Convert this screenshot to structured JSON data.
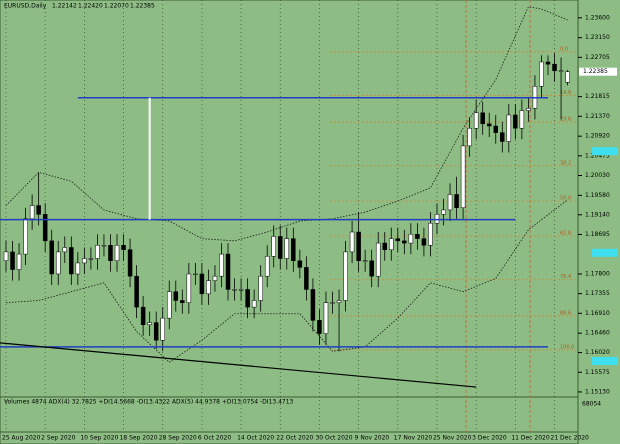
{
  "chart_data": {
    "type": "candlestick",
    "title": "EURUSD,Daily",
    "ohlc_header": [
      "1.22142",
      "1.22420",
      "1.22070",
      "1.22385"
    ],
    "price_label": "1.22385",
    "open": [
      1.181,
      1.183,
      1.179,
      1.1825,
      1.1905,
      1.1935,
      1.1915,
      1.1855,
      1.178,
      1.183,
      1.184,
      1.178,
      1.1805,
      1.1815,
      1.1815,
      1.1845,
      1.1845,
      1.181,
      1.1845,
      1.1835,
      1.1775,
      1.1705,
      1.1665,
      1.167,
      1.163,
      1.168,
      1.174,
      1.172,
      1.1715,
      1.178,
      1.178,
      1.1735,
      1.1765,
      1.1775,
      1.1825,
      1.1745,
      1.1745,
      1.1745,
      1.1705,
      1.172,
      1.1775,
      1.182,
      1.1865,
      1.1815,
      1.186,
      1.181,
      1.1795,
      1.1745,
      1.1675,
      1.1645,
      1.1715,
      1.1715,
      1.172,
      1.183,
      1.1875,
      1.181,
      1.181,
      1.1775,
      1.185,
      1.1835,
      1.186,
      1.1855,
      1.185,
      1.187,
      1.186,
      1.1845,
      1.1895,
      1.1915,
      1.1925,
      1.196,
      1.193,
      1.207,
      1.211,
      1.2145,
      1.212,
      1.2115,
      1.21,
      1.208,
      1.214,
      1.211,
      1.215,
      1.2155,
      1.2205,
      1.226,
      1.2255,
      1.224,
      1.2214
    ],
    "high": [
      1.1855,
      1.1855,
      1.185,
      1.193,
      1.196,
      1.201,
      1.194,
      1.188,
      1.1855,
      1.1865,
      1.1865,
      1.183,
      1.184,
      1.184,
      1.187,
      1.187,
      1.187,
      1.187,
      1.187,
      1.186,
      1.18,
      1.173,
      1.1695,
      1.1695,
      1.1705,
      1.1765,
      1.1765,
      1.1745,
      1.1805,
      1.1805,
      1.1805,
      1.179,
      1.18,
      1.185,
      1.185,
      1.177,
      1.177,
      1.177,
      1.1745,
      1.18,
      1.1845,
      1.189,
      1.189,
      1.1885,
      1.1885,
      1.1835,
      1.182,
      1.177,
      1.17,
      1.174,
      1.174,
      1.1745,
      1.1855,
      1.19,
      1.192,
      1.1835,
      1.1835,
      1.1875,
      1.1875,
      1.1885,
      1.1885,
      1.188,
      1.1895,
      1.1895,
      1.1885,
      1.192,
      1.194,
      1.195,
      1.1985,
      1.2,
      1.2095,
      1.2135,
      1.2175,
      1.217,
      1.2145,
      1.214,
      1.2125,
      1.2165,
      1.2165,
      1.2175,
      1.218,
      1.223,
      1.2275,
      1.2275,
      1.228,
      1.227,
      1.2242
    ],
    "low": [
      1.1785,
      1.1765,
      1.1765,
      1.18,
      1.188,
      1.189,
      1.183,
      1.1755,
      1.1755,
      1.1805,
      1.1755,
      1.1755,
      1.178,
      1.179,
      1.179,
      1.182,
      1.1785,
      1.1785,
      1.181,
      1.175,
      1.168,
      1.164,
      1.164,
      1.161,
      1.1605,
      1.1655,
      1.1695,
      1.169,
      1.169,
      1.1755,
      1.171,
      1.171,
      1.174,
      1.175,
      1.172,
      1.172,
      1.172,
      1.168,
      1.168,
      1.1695,
      1.175,
      1.1795,
      1.179,
      1.179,
      1.1785,
      1.177,
      1.172,
      1.165,
      1.162,
      1.162,
      1.169,
      1.1605,
      1.1695,
      1.1805,
      1.1785,
      1.1785,
      1.175,
      1.175,
      1.181,
      1.181,
      1.183,
      1.1825,
      1.1825,
      1.1835,
      1.182,
      1.182,
      1.187,
      1.189,
      1.19,
      1.1905,
      1.1905,
      1.2045,
      1.2085,
      1.2095,
      1.209,
      1.2075,
      1.2055,
      1.2055,
      1.2085,
      1.2085,
      1.2125,
      1.213,
      1.218,
      1.223,
      1.2215,
      1.213,
      1.2207
    ],
    "close": [
      1.183,
      1.179,
      1.1825,
      1.1905,
      1.1935,
      1.1915,
      1.1855,
      1.178,
      1.183,
      1.184,
      1.178,
      1.1805,
      1.1815,
      1.1815,
      1.1845,
      1.1845,
      1.181,
      1.1845,
      1.1835,
      1.1775,
      1.1705,
      1.1665,
      1.167,
      1.163,
      1.168,
      1.174,
      1.172,
      1.1715,
      1.178,
      1.178,
      1.1735,
      1.1765,
      1.1775,
      1.1825,
      1.1745,
      1.1745,
      1.1745,
      1.1705,
      1.172,
      1.1775,
      1.182,
      1.1865,
      1.1815,
      1.186,
      1.181,
      1.1795,
      1.1745,
      1.1675,
      1.1645,
      1.1715,
      1.1715,
      1.172,
      1.183,
      1.1875,
      1.181,
      1.181,
      1.1775,
      1.185,
      1.1835,
      1.186,
      1.1855,
      1.185,
      1.187,
      1.186,
      1.1845,
      1.1895,
      1.1915,
      1.1925,
      1.196,
      1.193,
      1.207,
      1.211,
      1.2145,
      1.212,
      1.2115,
      1.21,
      1.208,
      1.214,
      1.211,
      1.215,
      1.2155,
      1.2205,
      1.226,
      1.2255,
      1.224,
      1.224,
      1.2238
    ],
    "bands": [
      {
        "x": [
          0,
          5,
          10,
          15,
          20,
          25,
          30,
          35,
          40,
          45,
          50,
          55,
          60,
          65,
          70,
          75,
          80,
          82,
          86
        ],
        "values": [
          1.1935,
          1.201,
          1.199,
          1.1925,
          1.1905,
          1.19,
          1.186,
          1.1855,
          1.1875,
          1.19,
          1.1905,
          1.192,
          1.1945,
          1.1975,
          1.211,
          1.222,
          1.2385,
          1.238,
          1.2355
        ]
      },
      {
        "x": [
          0,
          5,
          10,
          15,
          20,
          25,
          30,
          35,
          40,
          45,
          50,
          55,
          60,
          65,
          70,
          75,
          80,
          86
        ],
        "values": [
          1.1715,
          1.172,
          1.174,
          1.176,
          1.165,
          1.158,
          1.163,
          1.169,
          1.169,
          1.169,
          1.1605,
          1.1615,
          1.168,
          1.176,
          1.174,
          1.177,
          1.188,
          1.1948
        ]
      }
    ],
    "levels": [
      {
        "from": 11,
        "to": 83,
        "price": 1.2179
      },
      {
        "from": -1,
        "to": 78,
        "price": 1.1903
      },
      {
        "from": -1,
        "to": 83,
        "price": 1.1615
      }
    ],
    "marker_line": {
      "x": 22,
      "from": 1.2179,
      "to": 1.1903
    },
    "trendline": {
      "x": [
        -1,
        72
      ],
      "y": [
        1.1624,
        1.1524
      ]
    },
    "fib": [
      {
        "label": "0.0",
        "price": 1.2283
      },
      {
        "label": "14.6",
        "price": 1.2184
      },
      {
        "label": "23.6",
        "price": 1.2124
      },
      {
        "label": "38.2",
        "price": 1.2025
      },
      {
        "label": "50.0",
        "price": 1.1945
      },
      {
        "label": "61.8",
        "price": 1.1866
      },
      {
        "label": "76.4",
        "price": 1.1767
      },
      {
        "label": "88.6",
        "price": 1.1685
      },
      {
        "label": "100.0",
        "price": 1.1608
      }
    ],
    "ylim": [
      1.1506,
      1.2389
    ],
    "yticks": [
      {
        "value": 1.236,
        "label": "1.23600"
      },
      {
        "value": 1.2315,
        "label": "1.23150"
      },
      {
        "value": 1.22705,
        "label": "1.22705"
      },
      {
        "value": 1.21815,
        "label": "1.21815"
      },
      {
        "value": 1.2137,
        "label": "1.21370"
      },
      {
        "value": 1.2092,
        "label": "1.20920"
      },
      {
        "value": 1.20475,
        "label": "1.20475"
      },
      {
        "value": 1.2003,
        "label": "1.20030"
      },
      {
        "value": 1.1958,
        "label": "1.19580"
      },
      {
        "value": 1.1914,
        "label": "1.19140"
      },
      {
        "value": 1.18695,
        "label": "1.18695"
      },
      {
        "value": 1.178,
        "label": "1.17800"
      },
      {
        "value": 1.17355,
        "label": "1.17355"
      },
      {
        "value": 1.1691,
        "label": "1.16910"
      },
      {
        "value": 1.1646,
        "label": "1.16460"
      },
      {
        "value": 1.1602,
        "label": "1.16020"
      },
      {
        "value": 1.15575,
        "label": "1.15575"
      },
      {
        "value": 1.1513,
        "label": "1.15130"
      }
    ],
    "xticks": [
      {
        "value": 0,
        "label": "25 Aug 2020"
      },
      {
        "value": 6,
        "label": "2 Sep 2020"
      },
      {
        "value": 12,
        "label": "10 Sep 2020"
      },
      {
        "value": 18,
        "label": "18 Sep 2020"
      },
      {
        "value": 24,
        "label": "28 Sep 2020"
      },
      {
        "value": 30,
        "label": "6 Oct 2020"
      },
      {
        "value": 36,
        "label": "14 Oct 2020"
      },
      {
        "value": 42,
        "label": "22 Oct 2020"
      },
      {
        "value": 48,
        "label": "30 Oct 2020"
      },
      {
        "value": 54,
        "label": "9 Nov 2020"
      },
      {
        "value": 60,
        "label": "17 Nov 2020"
      },
      {
        "value": 66,
        "label": "25 Nov 2020"
      },
      {
        "value": 72,
        "label": "3 Dec 2020"
      },
      {
        "value": 78,
        "label": "11 Dec 2020"
      },
      {
        "value": 84,
        "label": "21 Dec 2020"
      }
    ],
    "indicator_title": "Volumes 4874  ADX(4) 32.7825 +DI14.5668 -DI13.4322  ADX(5) 44.9378 +DI13.0754 -DI13.4713",
    "indicator_scale": "68054"
  }
}
